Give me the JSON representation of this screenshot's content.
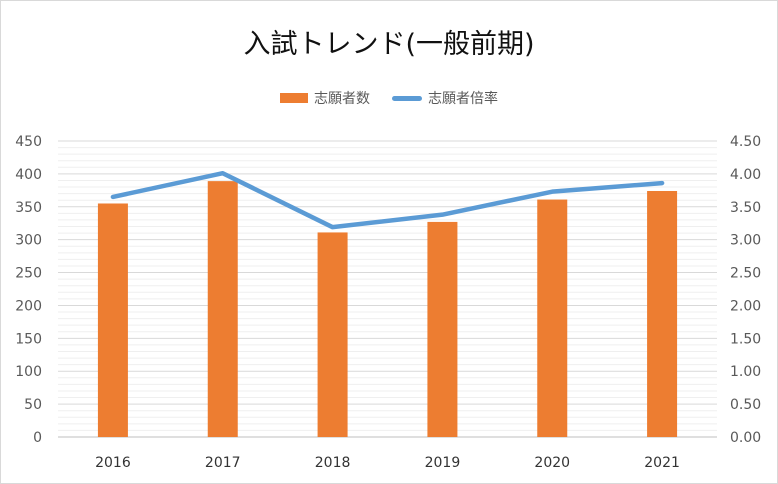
{
  "chart_data": {
    "type": "bar",
    "title": "入試トレンド(一般前期)",
    "categories": [
      "2016",
      "2017",
      "2018",
      "2019",
      "2020",
      "2021"
    ],
    "series": [
      {
        "name": "志願者数",
        "type": "bar",
        "axis": "left",
        "color": "#ED7D31",
        "values": [
          355,
          389,
          311,
          327,
          361,
          374
        ]
      },
      {
        "name": "志願者倍率",
        "type": "line",
        "axis": "right",
        "color": "#5B9BD5",
        "values": [
          3.65,
          4.01,
          3.19,
          3.38,
          3.73,
          3.86
        ]
      }
    ],
    "y_left": {
      "ylim": [
        0,
        450
      ],
      "ticks": [
        "0",
        "50",
        "100",
        "150",
        "200",
        "250",
        "300",
        "350",
        "400",
        "450"
      ]
    },
    "y_right": {
      "ylim": [
        0,
        4.5
      ],
      "ticks": [
        "0.00",
        "0.50",
        "1.00",
        "1.50",
        "2.00",
        "2.50",
        "3.00",
        "3.50",
        "4.00",
        "4.50"
      ]
    },
    "grid": true,
    "legend_position": "top"
  }
}
